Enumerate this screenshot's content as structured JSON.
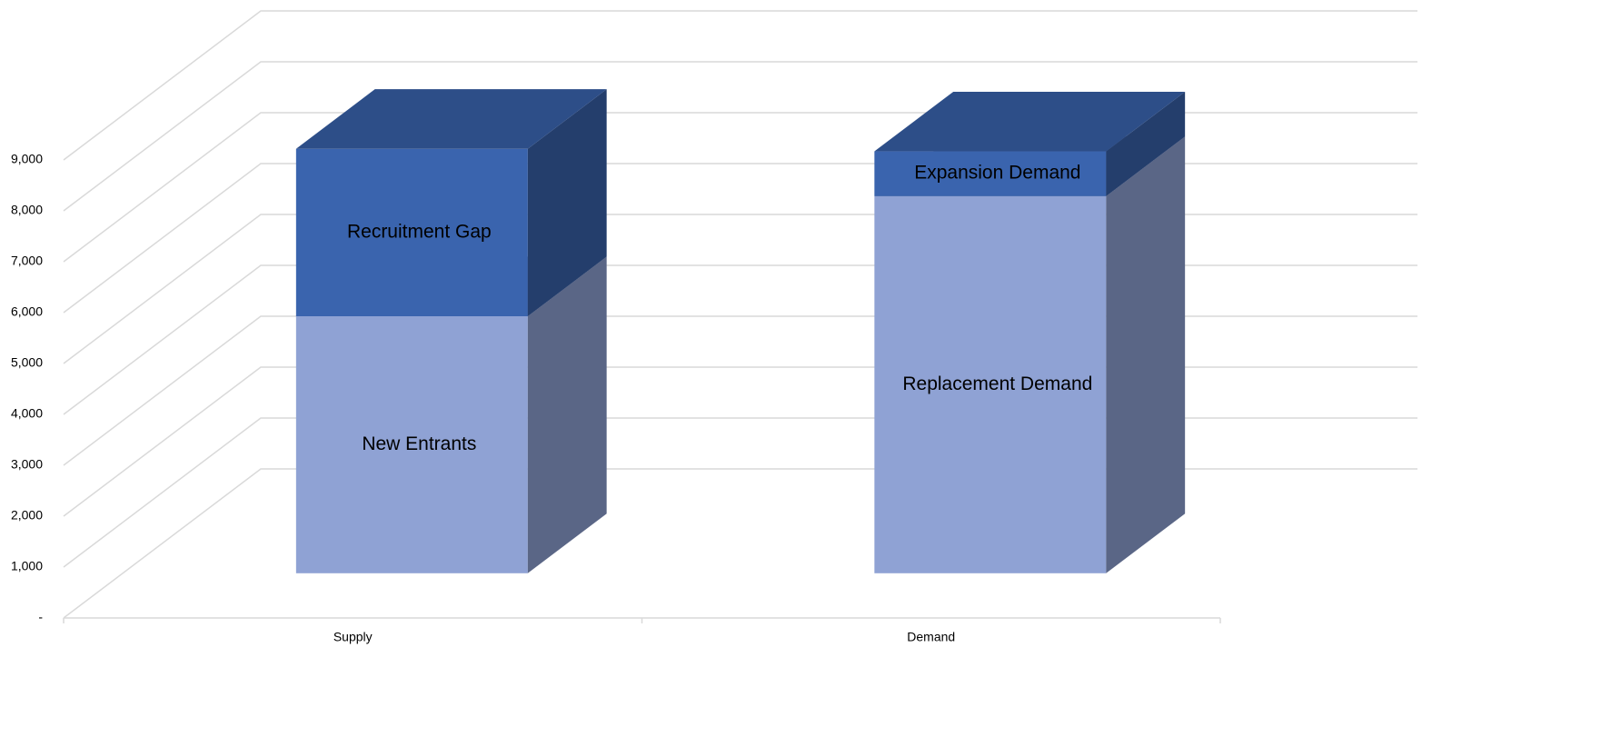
{
  "chart_data": {
    "type": "bar3d_stacked",
    "categories": [
      "Supply",
      "Demand"
    ],
    "series": [
      {
        "name": "New Entrants",
        "color": "#8fa2d4",
        "values": [
          5050,
          null
        ]
      },
      {
        "name": "Recruitment Gap",
        "color": "#3a64ae",
        "values": [
          3290,
          null
        ]
      },
      {
        "name": "Replacement Demand",
        "color": "#8fa2d4",
        "values": [
          null,
          7410
        ]
      },
      {
        "name": "Expansion Demand",
        "color": "#3a64ae",
        "values": [
          null,
          880
        ]
      }
    ],
    "ylim": [
      0,
      9000
    ],
    "yticks": [
      {
        "value": 0,
        "label": "-"
      },
      {
        "value": 1000,
        "label": "1,000"
      },
      {
        "value": 2000,
        "label": "2,000"
      },
      {
        "value": 3000,
        "label": "3,000"
      },
      {
        "value": 4000,
        "label": "4,000"
      },
      {
        "value": 5000,
        "label": "5,000"
      },
      {
        "value": 6000,
        "label": "6,000"
      },
      {
        "value": 7000,
        "label": "7,000"
      },
      {
        "value": 8000,
        "label": "8,000"
      },
      {
        "value": 9000,
        "label": "9,000"
      }
    ],
    "grid": true
  }
}
